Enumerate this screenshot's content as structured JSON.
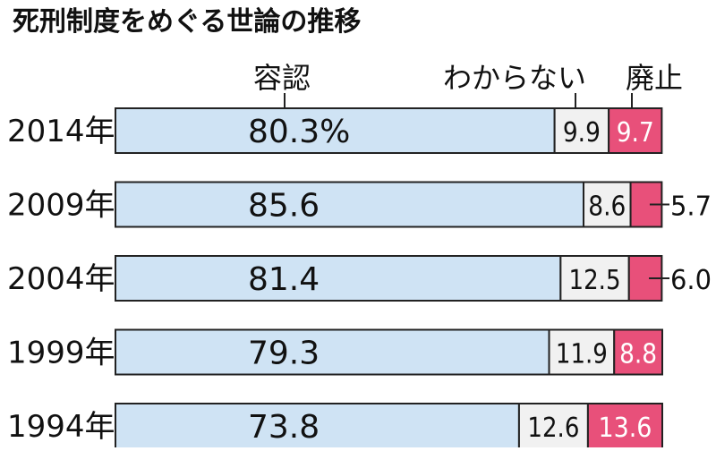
{
  "chart_data": {
    "type": "bar",
    "stacked": true,
    "orientation": "horizontal",
    "title": "死刑制度をめぐる世論の推移",
    "categories": [
      "2014年",
      "2009年",
      "2004年",
      "1999年",
      "1994年"
    ],
    "series": [
      {
        "name": "容認",
        "values": [
          80.3,
          85.6,
          81.4,
          79.3,
          73.8
        ],
        "labels": [
          "80.3%",
          "85.6",
          "81.4",
          "79.3",
          "73.8"
        ]
      },
      {
        "name": "わからない",
        "values": [
          9.9,
          8.6,
          12.5,
          11.9,
          12.6
        ],
        "labels": [
          "9.9",
          "8.6",
          "12.5",
          "11.9",
          "12.6"
        ]
      },
      {
        "name": "廃止",
        "values": [
          9.7,
          5.7,
          6.0,
          8.8,
          13.6
        ],
        "labels": [
          "9.7",
          "5.7",
          "6.0",
          "8.8",
          "13.6"
        ]
      }
    ],
    "colors": {
      "容認": "#cfe3f4",
      "わからない": "#f1f1f1",
      "廃止": "#e8507a"
    },
    "xlim": [
      0,
      100
    ],
    "grid": false,
    "legend": "top (labels above bars)"
  }
}
